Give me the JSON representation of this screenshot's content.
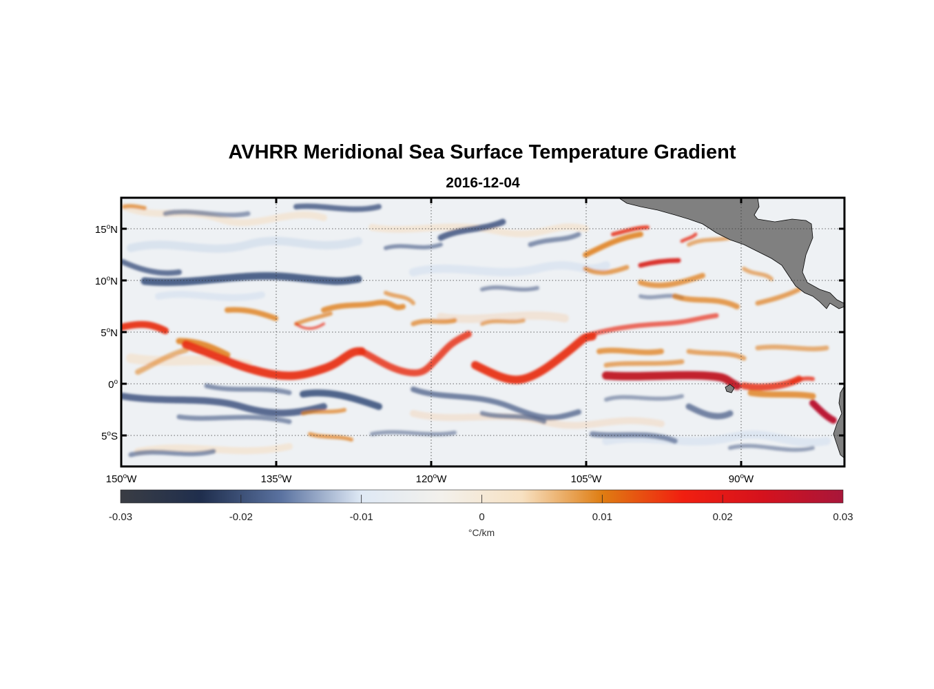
{
  "title": "AVHRR Meridional Sea Surface Temperature Gradient",
  "subtitle": "2016-12-04",
  "map": {
    "lon_range": [
      -150,
      -80
    ],
    "lat_range": [
      -8,
      18
    ],
    "grid": "dotted",
    "land_color": "#808080",
    "lat_ticks": [
      {
        "value": 15,
        "label": "15",
        "deg": "o",
        "hem": "N"
      },
      {
        "value": 10,
        "label": "10",
        "deg": "o",
        "hem": "N"
      },
      {
        "value": 5,
        "label": "5",
        "deg": "o",
        "hem": "N"
      },
      {
        "value": 0,
        "label": "0",
        "deg": "o",
        "hem": ""
      },
      {
        "value": -5,
        "label": "5",
        "deg": "o",
        "hem": "S"
      }
    ],
    "lon_ticks": [
      {
        "value": -150,
        "label": "150",
        "deg": "o",
        "hem": "W"
      },
      {
        "value": -135,
        "label": "135",
        "deg": "o",
        "hem": "W"
      },
      {
        "value": -120,
        "label": "120",
        "deg": "o",
        "hem": "W"
      },
      {
        "value": -105,
        "label": "105",
        "deg": "o",
        "hem": "W"
      },
      {
        "value": -90,
        "label": "90",
        "deg": "o",
        "hem": "W"
      }
    ]
  },
  "colorbar": {
    "range": [
      -0.03,
      0.03
    ],
    "ticks": [
      "-0.03",
      "-0.02",
      "-0.01",
      "0",
      "0.01",
      "0.02",
      "0.03"
    ],
    "units": "°C/km",
    "stops": [
      "#3a3d44",
      "#1f2e4d",
      "#5a72a0",
      "#dfe9f5",
      "#f3f1ec",
      "#f7e1c2",
      "#df7d12",
      "#f11f10",
      "#d5121d",
      "#a8163a"
    ]
  }
}
